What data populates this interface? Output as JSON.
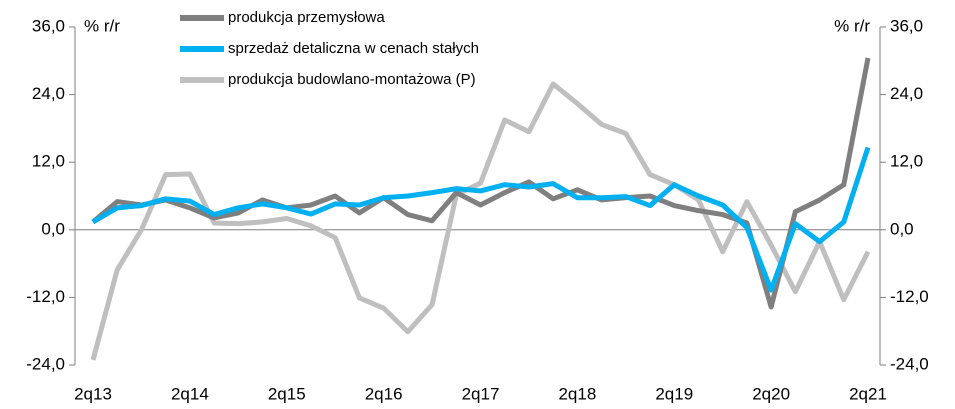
{
  "chart_data": {
    "type": "line",
    "y_label": "% r/r",
    "y2_label": "% r/r",
    "categories": [
      "2q13",
      null,
      null,
      null,
      "2q14",
      null,
      null,
      null,
      "2q15",
      null,
      null,
      null,
      "2q16",
      null,
      null,
      null,
      "2q17",
      null,
      null,
      null,
      "2q18",
      null,
      null,
      null,
      "2q19",
      null,
      null,
      null,
      "2q20",
      null,
      null,
      null,
      "2q21"
    ],
    "series": [
      {
        "name": "produkcja przemysłowa",
        "color": "#7f7f7f",
        "values": [
          1.4,
          5.0,
          4.4,
          5.3,
          3.9,
          2.1,
          3.0,
          5.3,
          3.9,
          4.4,
          6.0,
          3.0,
          5.7,
          2.7,
          1.6,
          6.6,
          4.4,
          6.6,
          8.5,
          5.5,
          7.1,
          5.3,
          5.7,
          6.0,
          4.3,
          3.4,
          2.7,
          1.2,
          -13.7,
          3.2,
          5.3,
          8.0,
          30.5
        ]
      },
      {
        "name": "sprzedaż detaliczna w cenach stałych",
        "color": "#00b0f0",
        "values": [
          1.4,
          3.9,
          4.3,
          5.5,
          5.1,
          2.7,
          3.9,
          4.6,
          3.9,
          2.8,
          4.6,
          4.4,
          5.7,
          6.0,
          6.6,
          7.3,
          6.9,
          8.0,
          7.6,
          8.2,
          5.7,
          5.7,
          5.9,
          4.3,
          8.0,
          6.0,
          4.4,
          0.4,
          -10.7,
          1.1,
          -2.1,
          1.4,
          14.6
        ]
      },
      {
        "name": "produkcja budowlano-montażowa (P)",
        "color": "#bfbfbf",
        "values": [
          -23.1,
          -7.1,
          0.0,
          9.8,
          9.9,
          1.2,
          1.1,
          1.4,
          2.0,
          0.7,
          -1.4,
          -12.1,
          -13.9,
          -18.1,
          -13.3,
          6.2,
          8.3,
          19.5,
          17.4,
          25.9,
          22.4,
          18.7,
          17.1,
          9.8,
          8.0,
          5.3,
          -3.9,
          5.0,
          -2.7,
          -11.0,
          -2.1,
          -12.4,
          -3.9
        ]
      }
    ],
    "ylim": [
      -24,
      36
    ],
    "yticks": [
      {
        "value": 36,
        "label": "36,0"
      },
      {
        "value": 24,
        "label": "24,0"
      },
      {
        "value": 12,
        "label": "12,0"
      },
      {
        "value": 0,
        "label": "0,0"
      },
      {
        "value": -12,
        "label": "-12,0"
      },
      {
        "value": -24,
        "label": "-24,0"
      }
    ],
    "y2lim": [
      -24,
      36
    ],
    "y2ticks": [
      {
        "value": 36,
        "label": "36,0"
      },
      {
        "value": 24,
        "label": "24,0"
      },
      {
        "value": 12,
        "label": "12,0"
      },
      {
        "value": 0,
        "label": "0,0"
      },
      {
        "value": -12,
        "label": "-12,0"
      },
      {
        "value": -24,
        "label": "-24,0"
      }
    ],
    "grid": false
  }
}
